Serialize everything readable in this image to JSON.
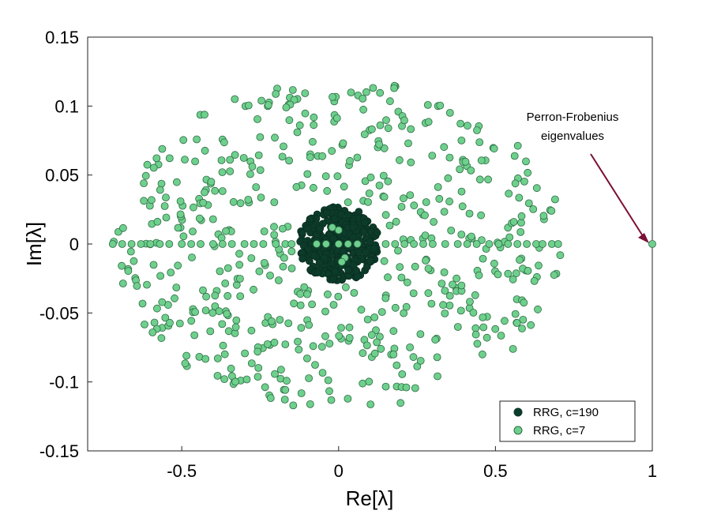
{
  "chart_data": {
    "type": "scatter",
    "xlabel": "Re[λ]",
    "ylabel": "Im[λ]",
    "xlim": [
      -0.8,
      1.0
    ],
    "ylim": [
      -0.15,
      0.15
    ],
    "x_ticks": [
      -0.5,
      0,
      0.5,
      1
    ],
    "x_tick_labels": [
      "-0.5",
      "0",
      "0.5",
      "1"
    ],
    "y_ticks": [
      -0.15,
      -0.1,
      -0.05,
      0,
      0.05,
      0.1,
      0.15
    ],
    "y_tick_labels": [
      "-0.15",
      "-0.1",
      "-0.05",
      "0",
      "0.05",
      "0.1",
      "0.15"
    ],
    "grid": false,
    "legend_position": "bottom-right",
    "annotation": {
      "lines": [
        "Perron-Frobenius",
        "eigenvalues"
      ],
      "points_to": [
        1.0,
        0.0
      ]
    },
    "series": [
      {
        "name": "RRG, c=190",
        "color": "#0c3b2a",
        "distribution": "dense disk",
        "center": [
          0,
          0
        ],
        "radius_re": 0.13,
        "radius_im": 0.027,
        "outlier": [
          1.0,
          0.0
        ]
      },
      {
        "name": "RRG, c=7",
        "color": "#6ed08c",
        "distribution": "ellipse",
        "radius_re": 0.72,
        "radius_im": 0.12,
        "outlier": [
          1.0,
          0.0
        ],
        "real_axis_points": [
          -0.72,
          -0.69,
          -0.66,
          -0.63,
          -0.6,
          -0.57,
          -0.54,
          -0.5,
          -0.47,
          -0.44,
          -0.4,
          -0.37,
          -0.34,
          -0.3,
          -0.27,
          -0.24,
          -0.2,
          -0.17,
          -0.15,
          0.15,
          0.18,
          0.21,
          0.24,
          0.27,
          0.3,
          0.34,
          0.38,
          0.41,
          0.44,
          0.48,
          0.51,
          0.54,
          0.57,
          0.6,
          0.63,
          0.65,
          0.68,
          0.7
        ]
      }
    ]
  }
}
